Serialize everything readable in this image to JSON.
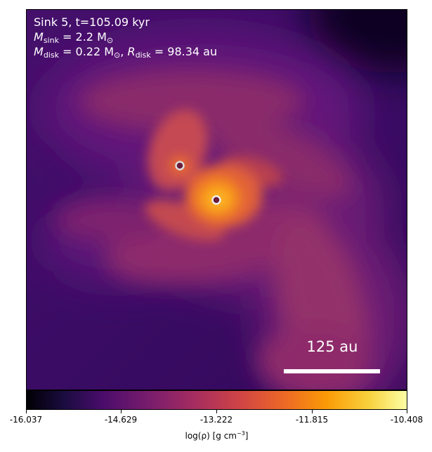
{
  "panel": {
    "title_line": "Sink 5, t=105.09 kyr",
    "msink": {
      "symbol": "M",
      "subscript": "sink",
      "rest": " = 2.2 M",
      "unit_sub": "⊙"
    },
    "mdisk": {
      "symbol": "M",
      "subscript": "disk",
      "rest": " = 0.22 M",
      "unit_sub": "⊙",
      "sep": ", ",
      "r_symbol": "R",
      "r_subscript": "disk",
      "r_rest": " = 98.34 au"
    },
    "scalebar_label": "125 au"
  },
  "colorbar": {
    "ticks": [
      "-16.037",
      "-14.629",
      "-13.222",
      "-11.815",
      "-10.408"
    ],
    "label_prefix": "log(ρ) [g cm",
    "label_exp": "−3",
    "label_suffix": "]",
    "colormap": "inferno"
  },
  "sinks": [
    {
      "name": "sink-primary",
      "ring_color": "#eeeeee"
    },
    {
      "name": "sink-secondary",
      "ring_color": "#dddddd"
    }
  ],
  "colors": {
    "background_low": "#2a0a5c",
    "envelope": "#6b1d76",
    "stream": "#b23a5c",
    "disk_hot": "#fb9b06",
    "disk_core": "#fcd34d"
  }
}
